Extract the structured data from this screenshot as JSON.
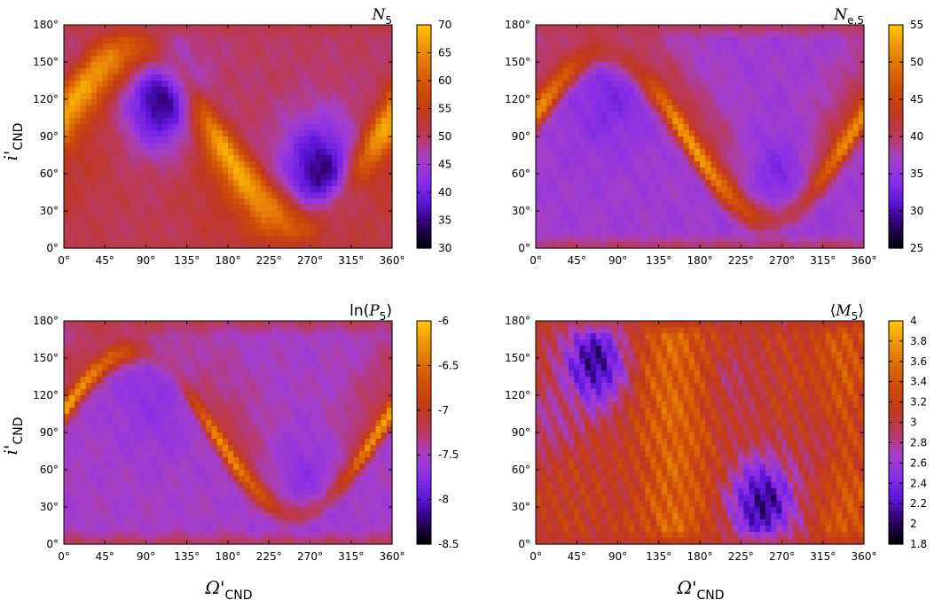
{
  "shared": {
    "xlabel_main": "Ω'",
    "xlabel_sub": "CND",
    "ylabel_main": "i'",
    "ylabel_sub": "CND",
    "x_ticks": [
      "0°",
      "45°",
      "90°",
      "135°",
      "180°",
      "225°",
      "270°",
      "315°",
      "360°"
    ],
    "y_ticks": [
      "0°",
      "30°",
      "60°",
      "90°",
      "120°",
      "150°",
      "180°"
    ]
  },
  "colormap": [
    "#000000",
    "#2a0066",
    "#5a14d6",
    "#8a2ee6",
    "#a43ec8",
    "#b83a60",
    "#c0381e",
    "#cc4a0a",
    "#dd6a08",
    "#ee9406",
    "#ffc508"
  ],
  "chart_data": [
    {
      "type": "heatmap",
      "title_main": "N",
      "title_sub": "5",
      "title_fn": "",
      "xlim": [
        0,
        360
      ],
      "ylim": [
        0,
        180
      ],
      "colorbar": {
        "min": 30,
        "max": 70,
        "ticks": [
          "70",
          "65",
          "60",
          "55",
          "50",
          "45",
          "40",
          "35",
          "30"
        ]
      },
      "field": {
        "background": 0.5,
        "band": 0.96,
        "band_width": 16,
        "wing": 0.62,
        "wing_reach": 68,
        "wing_sign": 1,
        "blobs": [
          [
            105,
            118,
            0.12,
            30
          ],
          [
            280,
            62,
            0.12,
            30
          ]
        ],
        "extra": []
      }
    },
    {
      "type": "heatmap",
      "title_main": "N",
      "title_sub": "e,5",
      "title_fn": "",
      "xlim": [
        0,
        360
      ],
      "ylim": [
        0,
        180
      ],
      "colorbar": {
        "min": 25,
        "max": 55,
        "ticks": [
          "55",
          "50",
          "45",
          "40",
          "35",
          "30",
          "25"
        ]
      },
      "field": {
        "background": 0.38,
        "band": 0.92,
        "band_width": 9,
        "wing": 0.58,
        "wing_reach": 40,
        "wing_sign": -1,
        "blobs": [
          [
            80,
            122,
            0.28,
            32
          ],
          [
            265,
            58,
            0.28,
            32
          ]
        ],
        "extra": []
      }
    },
    {
      "type": "heatmap",
      "title_main": "P",
      "title_sub": "5",
      "title_fn": "ln",
      "xlim": [
        0,
        360
      ],
      "ylim": [
        0,
        180
      ],
      "colorbar": {
        "min": -8.5,
        "max": -6,
        "ticks": [
          "-6",
          "-6.5",
          "-7",
          "-7.5",
          "-8",
          "-8.5"
        ]
      },
      "field": {
        "background": 0.4,
        "band": 0.94,
        "band_width": 7,
        "wing": 0.55,
        "wing_reach": 45,
        "wing_sign": -1,
        "blobs": [
          [
            100,
            122,
            0.32,
            35
          ],
          [
            265,
            55,
            0.32,
            35
          ]
        ],
        "extra": []
      }
    },
    {
      "type": "heatmap",
      "title_main": "M",
      "title_sub": "5",
      "title_fn": "⟨⟩",
      "xlim": [
        0,
        360
      ],
      "ylim": [
        0,
        180
      ],
      "colorbar": {
        "min": 1.8,
        "max": 4,
        "ticks": [
          "4",
          "3.8",
          "3.6",
          "3.4",
          "3.2",
          "3",
          "2.8",
          "2.6",
          "2.4",
          "2.2",
          "2",
          "1.8"
        ]
      },
      "field": {
        "background": 0.62,
        "band": 0.62,
        "band_width": 0,
        "wing": 0.62,
        "wing_reach": 0,
        "wing_sign": 1,
        "blobs": [
          [
            65,
            145,
            0.12,
            28
          ],
          [
            248,
            33,
            0.12,
            28
          ],
          [
            15,
            100,
            0.45,
            22
          ],
          [
            325,
            80,
            0.45,
            22
          ],
          [
            215,
            130,
            0.5,
            25
          ],
          [
            120,
            50,
            0.55,
            30
          ]
        ],
        "extra": [
          "stripes"
        ]
      }
    }
  ]
}
